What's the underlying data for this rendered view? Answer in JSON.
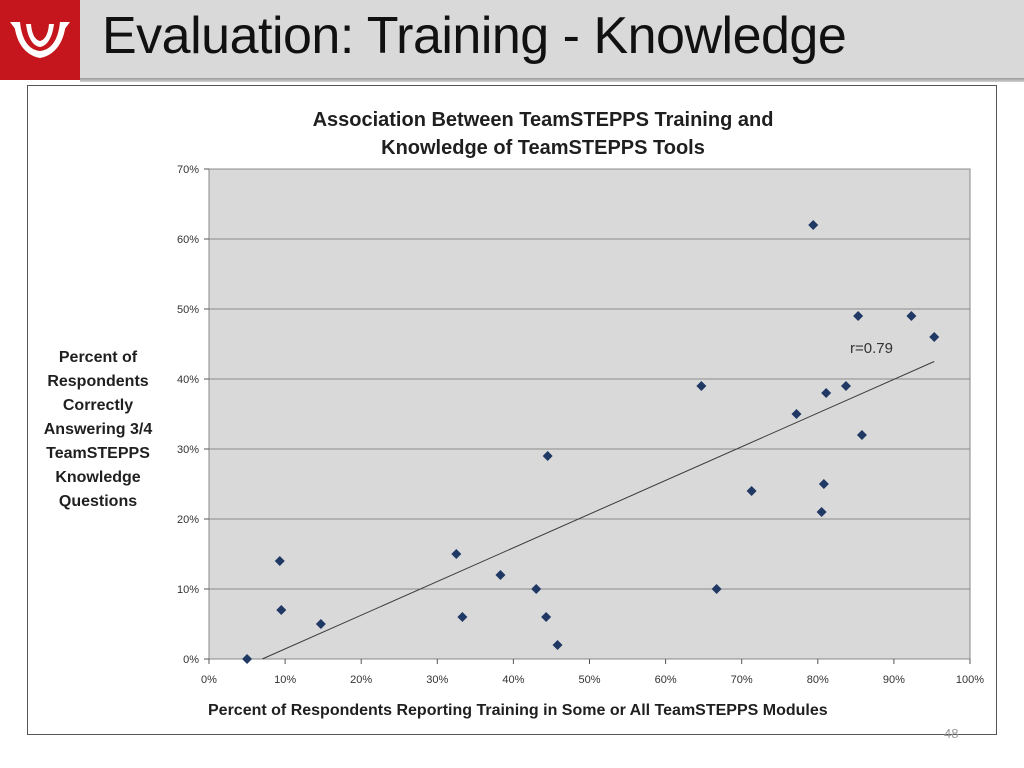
{
  "slide": {
    "title": "Evaluation: Training - Knowledge",
    "page_number": "48",
    "brand_color": "#c4161c",
    "logo_icon": "university-logo-icon"
  },
  "chart_data": {
    "type": "scatter",
    "title": "Association Between TeamSTEPPS Training and Knowledge of TeamSTEPPS Tools",
    "title_lines": [
      "Association Between TeamSTEPPS Training and",
      "Knowledge of  TeamSTEPPS Tools"
    ],
    "xlabel": "Percent  of Respondents  Reporting Training in Some or All TeamSTEPPS Modules",
    "ylabel": "Percent of Respondents Correctly Answering 3/4 TeamSTEPPS Knowledge Questions",
    "ylabel_lines": [
      "Percent  of",
      "Respondents",
      "Correctly",
      "Answering 3/4",
      "TeamSTEPPS",
      "Knowledge",
      "Questions"
    ],
    "xlim": [
      0,
      100
    ],
    "ylim": [
      0,
      70
    ],
    "x_ticks": [
      "0%",
      "10%",
      "20%",
      "30%",
      "40%",
      "50%",
      "60%",
      "70%",
      "80%",
      "90%",
      "100%"
    ],
    "y_ticks": [
      "0%",
      "10%",
      "20%",
      "30%",
      "40%",
      "50%",
      "60%",
      "70%"
    ],
    "grid": "horizontal",
    "plot_background": "#d9d9d9",
    "marker_color": "#1f3864",
    "marker": "diamond",
    "points": [
      {
        "x": 5,
        "y": 0
      },
      {
        "x": 9.3,
        "y": 14
      },
      {
        "x": 9.5,
        "y": 7
      },
      {
        "x": 14.7,
        "y": 5
      },
      {
        "x": 32.5,
        "y": 15
      },
      {
        "x": 33.3,
        "y": 6
      },
      {
        "x": 38.3,
        "y": 12
      },
      {
        "x": 43,
        "y": 10
      },
      {
        "x": 44.3,
        "y": 6
      },
      {
        "x": 44.5,
        "y": 29
      },
      {
        "x": 45.8,
        "y": 2
      },
      {
        "x": 64.7,
        "y": 39
      },
      {
        "x": 66.7,
        "y": 10
      },
      {
        "x": 71.3,
        "y": 24
      },
      {
        "x": 77.2,
        "y": 35
      },
      {
        "x": 79.4,
        "y": 62
      },
      {
        "x": 80.5,
        "y": 21
      },
      {
        "x": 80.8,
        "y": 25
      },
      {
        "x": 81.1,
        "y": 38
      },
      {
        "x": 83.7,
        "y": 39
      },
      {
        "x": 85.3,
        "y": 49
      },
      {
        "x": 85.8,
        "y": 32
      },
      {
        "x": 92.3,
        "y": 49
      },
      {
        "x": 95.3,
        "y": 46
      }
    ],
    "trendline": {
      "from": {
        "x": 7.0,
        "y": 0
      },
      "to": {
        "x": 95.3,
        "y": 42.5
      }
    },
    "annotation": "r=0.79"
  }
}
